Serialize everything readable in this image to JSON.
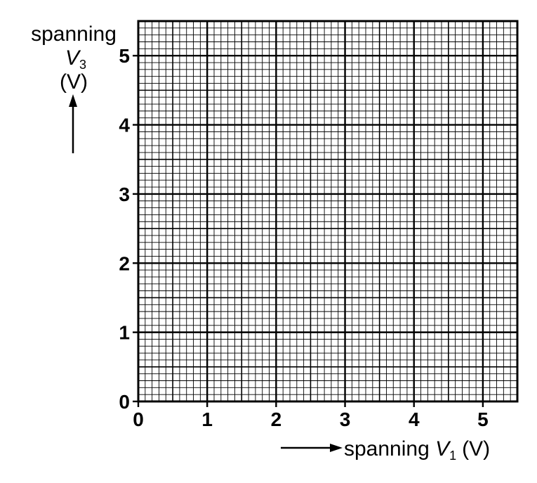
{
  "chart_data": {
    "type": "scatter",
    "title": "",
    "xlabel": "spanning V1 (V)",
    "ylabel": "spanning V3 (V)",
    "xlabel_parts": {
      "prefix": "spanning ",
      "var": "V",
      "sub": "1",
      "unit": "(V)"
    },
    "ylabel_parts": {
      "word": "spanning",
      "var": "V",
      "sub": "3",
      "unit": "(V)"
    },
    "xlim": [
      0,
      5.5
    ],
    "ylim": [
      0,
      5.5
    ],
    "xticks": [
      "0",
      "1",
      "2",
      "3",
      "4",
      "5"
    ],
    "yticks": [
      "0",
      "1",
      "2",
      "3",
      "4",
      "5"
    ],
    "grid": {
      "major": 0.5,
      "minor": 0.1
    },
    "series": []
  }
}
